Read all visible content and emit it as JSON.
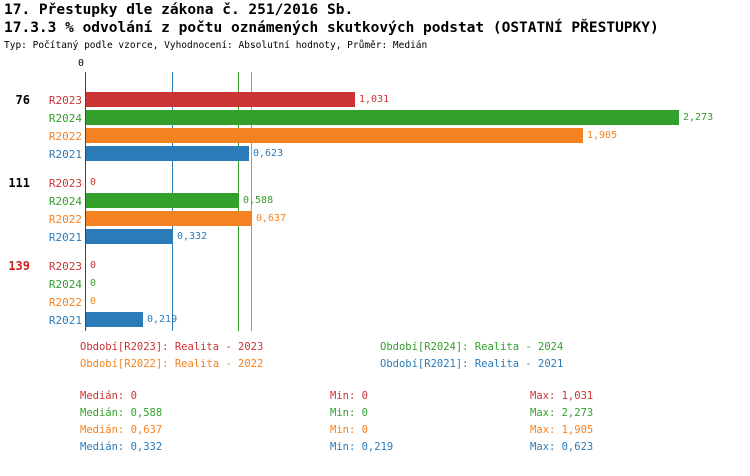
{
  "colors": {
    "R2023": "#cc3333",
    "R2024": "#33a02c",
    "R2022": "#f58220",
    "R2021": "#2b7bb9",
    "axis": "#444444",
    "group_label": "#000000",
    "group_label_alert": "#cc2222"
  },
  "chart_data": {
    "type": "bar",
    "orientation": "horizontal",
    "title": "17. Přestupky dle zákona č. 251/2016 Sb.",
    "subtitle": "17.3.3 % odvolání z počtu oznámených skutkových podstat (OSTATNÍ PŘESTUPKY)",
    "meta": "Typ: Počítaný podle vzorce, Vyhodnocení: Absolutní hodnoty, Průměr: Medián",
    "x_axis_zero_label": "0",
    "xlim": [
      0,
      2.5
    ],
    "legend_position": "bottom",
    "series": [
      "R2023",
      "R2024",
      "R2022",
      "R2021"
    ],
    "medians": {
      "R2023": 0,
      "R2024": 0.588,
      "R2022": 0.637,
      "R2021": 0.332
    },
    "groups": [
      {
        "label": "76",
        "label_alert": false,
        "bars": [
          {
            "series": "R2023",
            "value": 1.031,
            "display": "1,031"
          },
          {
            "series": "R2024",
            "value": 2.273,
            "display": "2,273"
          },
          {
            "series": "R2022",
            "value": 1.905,
            "display": "1,905"
          },
          {
            "series": "R2021",
            "value": 0.623,
            "display": "0,623"
          }
        ]
      },
      {
        "label": "111",
        "label_alert": false,
        "bars": [
          {
            "series": "R2023",
            "value": 0,
            "display": "0"
          },
          {
            "series": "R2024",
            "value": 0.588,
            "display": "0,588"
          },
          {
            "series": "R2022",
            "value": 0.637,
            "display": "0,637"
          },
          {
            "series": "R2021",
            "value": 0.332,
            "display": "0,332"
          }
        ]
      },
      {
        "label": "139",
        "label_alert": true,
        "bars": [
          {
            "series": "R2023",
            "value": 0,
            "display": "0"
          },
          {
            "series": "R2024",
            "value": 0,
            "display": "0"
          },
          {
            "series": "R2022",
            "value": 0,
            "display": "0"
          },
          {
            "series": "R2021",
            "value": 0.219,
            "display": "0,219"
          }
        ]
      }
    ]
  },
  "legend": {
    "items": [
      {
        "series": "R2023",
        "text": "Období[R2023]: Realita - 2023"
      },
      {
        "series": "R2024",
        "text": "Období[R2024]: Realita - 2024"
      },
      {
        "series": "R2022",
        "text": "Období[R2022]: Realita - 2022"
      },
      {
        "series": "R2021",
        "text": "Období[R2021]: Realita - 2021"
      }
    ]
  },
  "stats": {
    "rows": [
      {
        "series": "R2023",
        "median": "Medián: 0",
        "min": "Min: 0",
        "max": "Max: 1,031"
      },
      {
        "series": "R2024",
        "median": "Medián: 0,588",
        "min": "Min: 0",
        "max": "Max: 2,273"
      },
      {
        "series": "R2022",
        "median": "Medián: 0,637",
        "min": "Min: 0",
        "max": "Max: 1,905"
      },
      {
        "series": "R2021",
        "median": "Medián: 0,332",
        "min": "Min: 0,219",
        "max": "Max: 0,623"
      }
    ]
  }
}
